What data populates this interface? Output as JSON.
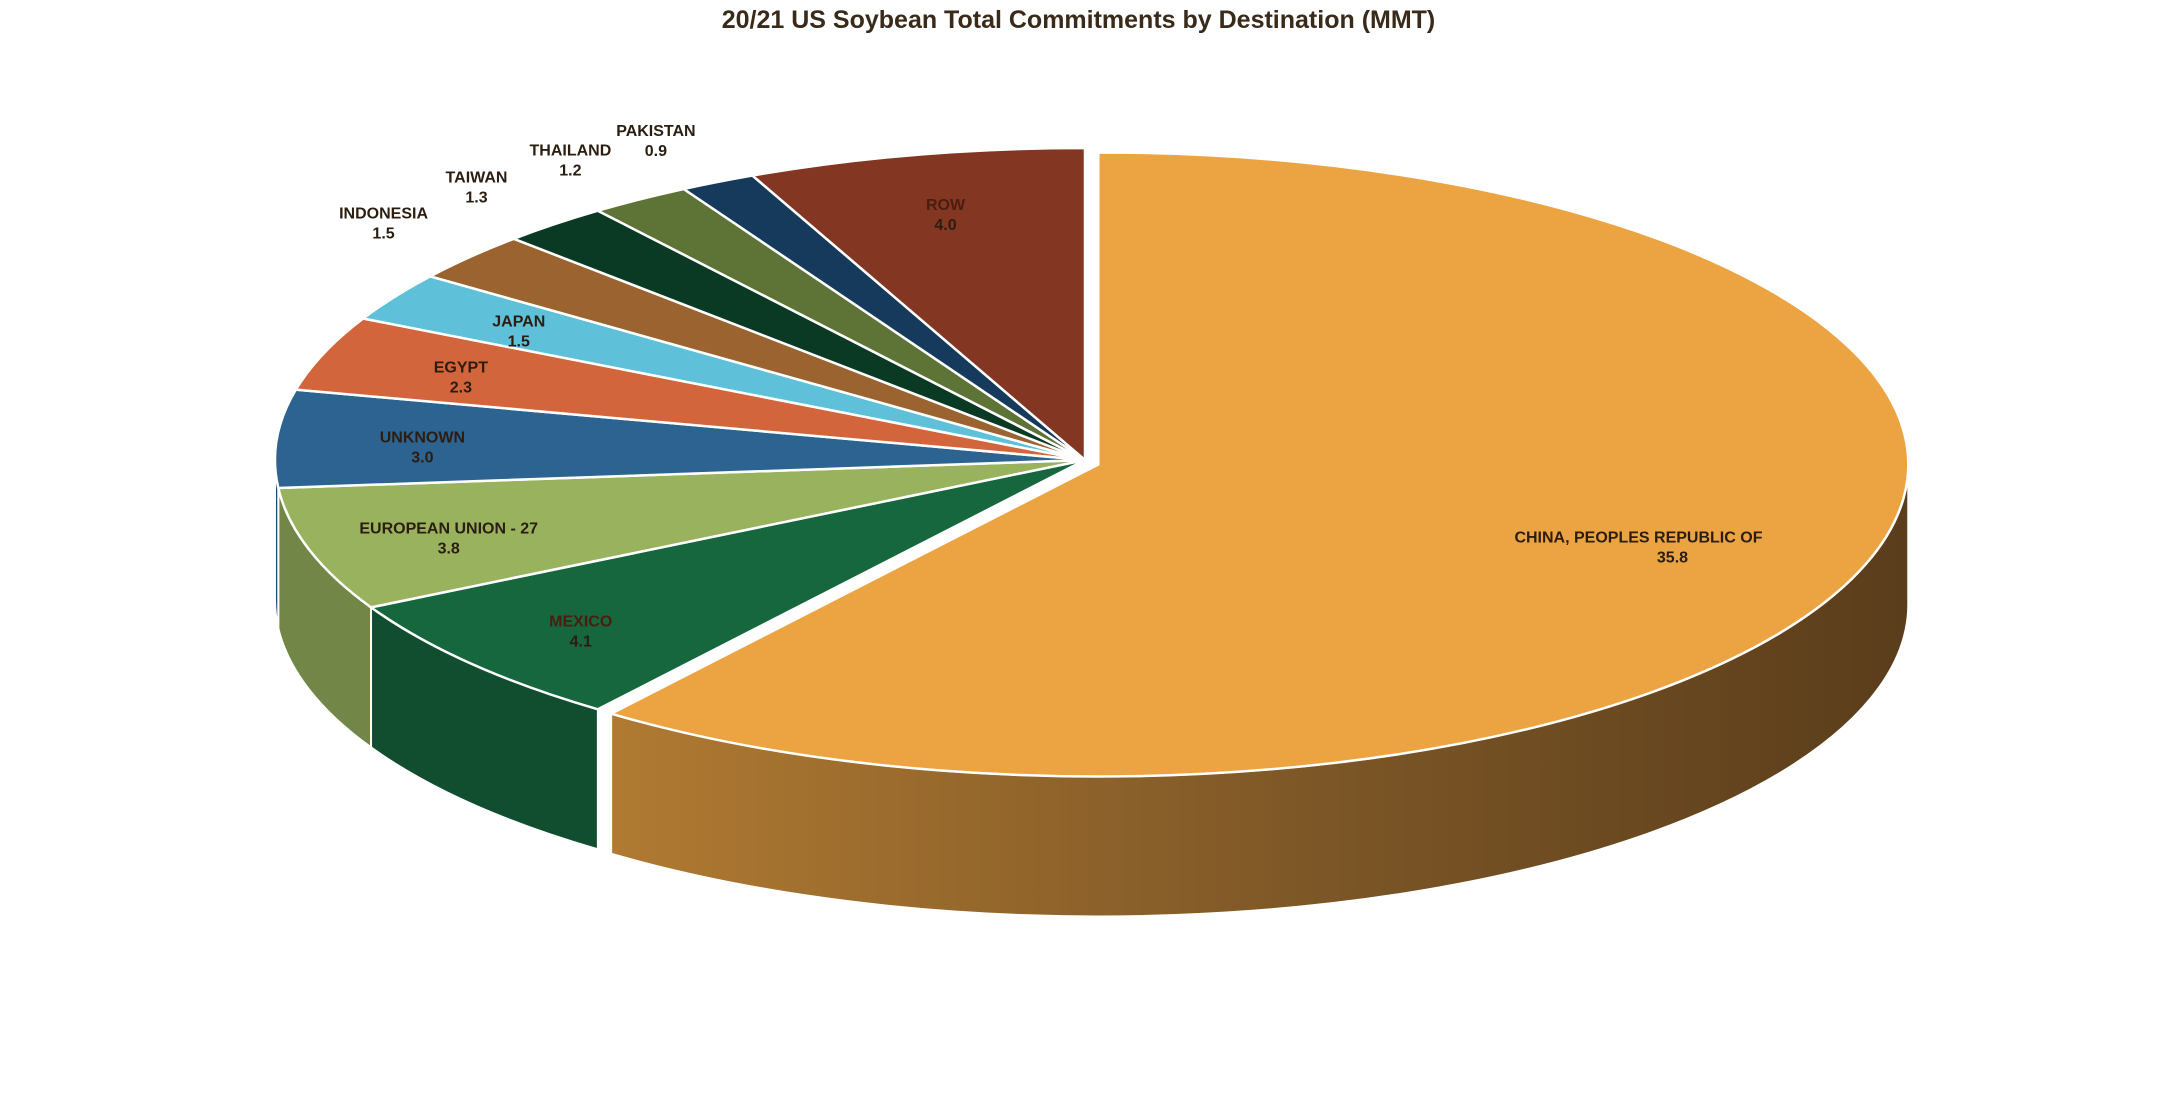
{
  "chart_data": {
    "type": "pie",
    "style": "3d-exploded",
    "title": "20/21 US Soybean Total Commitments by Destination (MMT)",
    "unit": "MMT",
    "legend": "none",
    "slices": [
      {
        "name": "CHINA, PEOPLES REPUBLIC OF",
        "value": 35.8,
        "value_label": "35.8",
        "color": "#eca342"
      },
      {
        "name": "MEXICO",
        "value": 4.1,
        "value_label": "4.1",
        "color": "#16663e"
      },
      {
        "name": "EUROPEAN UNION - 27",
        "value": 3.8,
        "value_label": "3.8",
        "color": "#98b25e"
      },
      {
        "name": "UNKNOWN",
        "value": 3.0,
        "value_label": "3.0",
        "color": "#2d6391"
      },
      {
        "name": "EGYPT",
        "value": 2.3,
        "value_label": "2.3",
        "color": "#d2653b"
      },
      {
        "name": "JAPAN",
        "value": 1.5,
        "value_label": "1.5",
        "color": "#5ec0d9"
      },
      {
        "name": "INDONESIA",
        "value": 1.5,
        "value_label": "1.5",
        "color": "#9b6330"
      },
      {
        "name": "TAIWAN",
        "value": 1.3,
        "value_label": "1.3",
        "color": "#0b3a24"
      },
      {
        "name": "THAILAND",
        "value": 1.2,
        "value_label": "1.2",
        "color": "#5e7336"
      },
      {
        "name": "PAKISTAN",
        "value": 0.9,
        "value_label": "0.9",
        "color": "#153a5c"
      },
      {
        "name": "ROW",
        "value": 4.0,
        "value_label": "4.0",
        "color": "#833622"
      }
    ]
  }
}
